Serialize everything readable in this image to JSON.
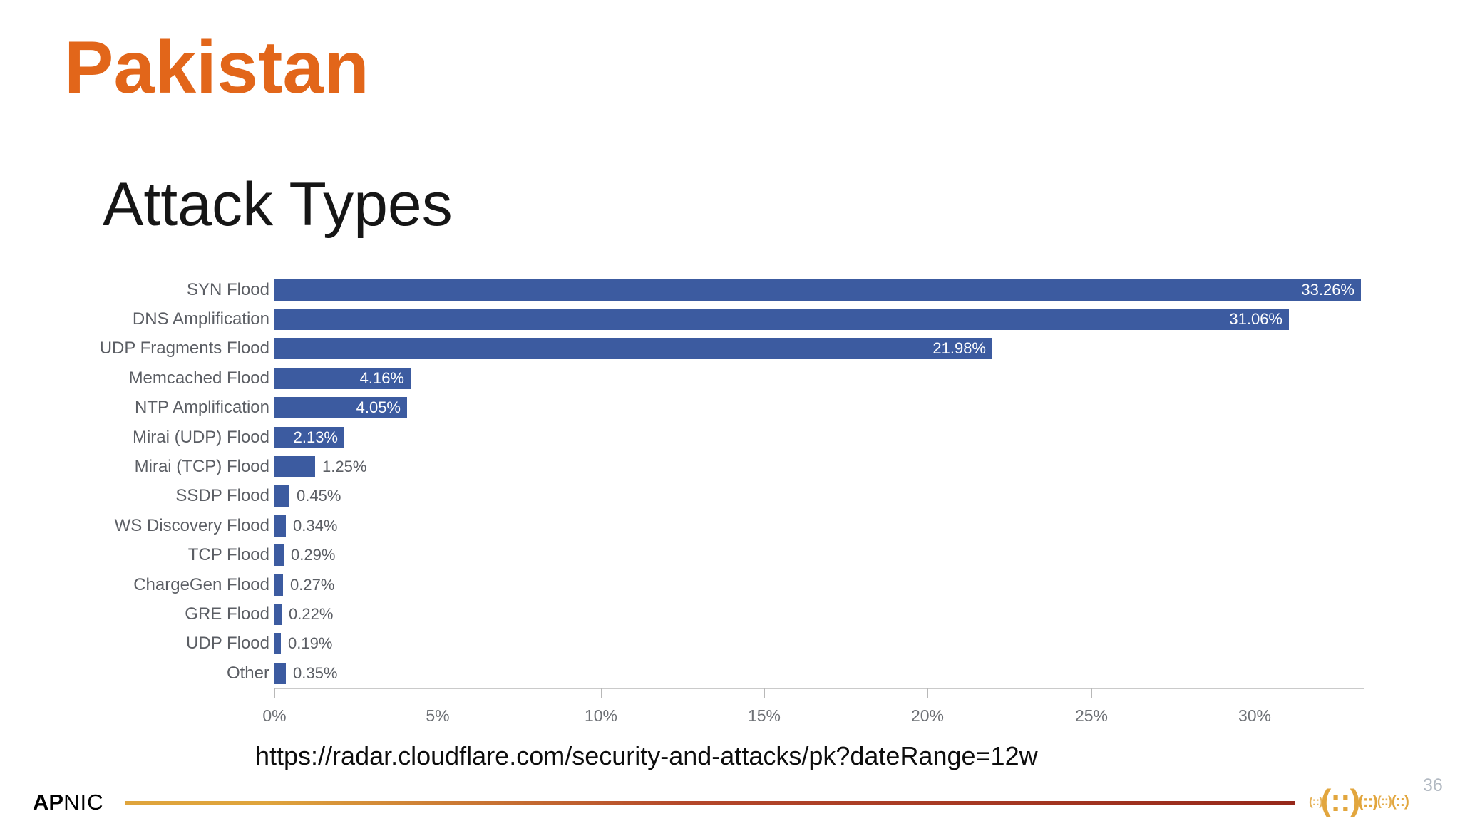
{
  "slide": {
    "title": "Pakistan",
    "subtitle": "Attack Types",
    "source_url": "https://radar.cloudflare.com/security-and-attacks/pk?dateRange=12w",
    "page_number": "36"
  },
  "footer": {
    "logo_bold": "AP",
    "logo_rest": "NIC",
    "decoration_glyphs": [
      "(::)",
      "(::)",
      "(::)",
      "(::)",
      "(::)"
    ]
  },
  "colors": {
    "title_orange": "#E2661A",
    "bar_blue": "#3C5BA0",
    "label_gray": "#5B5E64",
    "axis_gray": "#CACACA",
    "line_gold": "#DFA43C",
    "line_rust": "#B4472A",
    "line_dark_red": "#96281A",
    "gold_logo": "#E2A63E",
    "page_number_gray": "#B2B9C2"
  },
  "chart_data": {
    "type": "bar",
    "orientation": "horizontal",
    "title": "Attack Types",
    "xlabel": "",
    "ylabel": "",
    "categories": [
      "SYN Flood",
      "DNS Amplification",
      "UDP Fragments Flood",
      "Memcached Flood",
      "NTP Amplification",
      "Mirai (UDP) Flood",
      "Mirai (TCP) Flood",
      "SSDP Flood",
      "WS Discovery Flood",
      "TCP Flood",
      "ChargeGen Flood",
      "GRE Flood",
      "UDP Flood",
      "Other"
    ],
    "values": [
      33.26,
      31.06,
      21.98,
      4.16,
      4.05,
      2.13,
      1.25,
      0.45,
      0.34,
      0.29,
      0.27,
      0.22,
      0.19,
      0.35
    ],
    "value_labels": [
      "33.26%",
      "31.06%",
      "21.98%",
      "4.16%",
      "4.05%",
      "2.13%",
      "1.25%",
      "0.45%",
      "0.34%",
      "0.29%",
      "0.27%",
      "0.22%",
      "0.19%",
      "0.35%"
    ],
    "tick_values": [
      0,
      5,
      10,
      15,
      20,
      25,
      30
    ],
    "tick_labels": [
      "0%",
      "5%",
      "10%",
      "15%",
      "20%",
      "25%",
      "30%"
    ],
    "xlim": [
      0,
      33.26
    ],
    "grid": false,
    "legend": false,
    "inside_label_min": 2.0
  }
}
